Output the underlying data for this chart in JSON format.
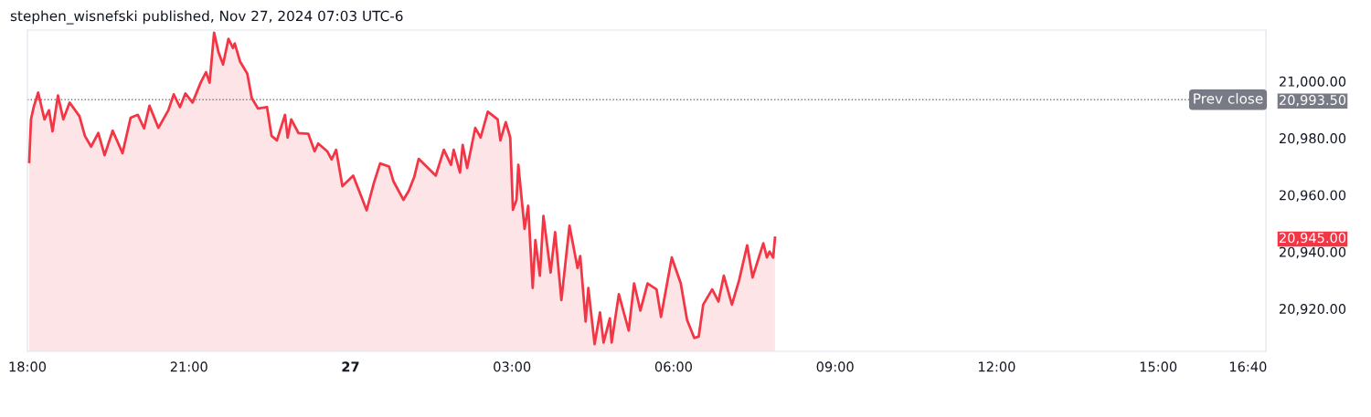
{
  "chart_data": {
    "type": "area",
    "title": "stephen_wisnefski published, Nov 27, 2024 07:03 UTC-6",
    "x": [
      "2024-11-26T18:02",
      "2024-11-26T18:04",
      "2024-11-26T18:07",
      "2024-11-26T18:12",
      "2024-11-26T18:19",
      "2024-11-26T18:24",
      "2024-11-26T18:28",
      "2024-11-26T18:34",
      "2024-11-26T18:40",
      "2024-11-26T18:47",
      "2024-11-26T18:58",
      "2024-11-26T19:04",
      "2024-11-26T19:11",
      "2024-11-26T19:19",
      "2024-11-26T19:26",
      "2024-11-26T19:35",
      "2024-11-26T19:46",
      "2024-11-26T19:55",
      "2024-11-26T20:03",
      "2024-11-26T20:10",
      "2024-11-26T20:16",
      "2024-11-26T20:26",
      "2024-11-26T20:37",
      "2024-11-26T20:43",
      "2024-11-26T20:50",
      "2024-11-26T20:56",
      "2024-11-26T21:04",
      "2024-11-26T21:13",
      "2024-11-26T21:19",
      "2024-11-26T21:23",
      "2024-11-26T21:28",
      "2024-11-26T21:33",
      "2024-11-26T21:38",
      "2024-11-26T21:44",
      "2024-11-26T21:49",
      "2024-11-26T21:51",
      "2024-11-26T21:57",
      "2024-11-26T22:05",
      "2024-11-26T22:10",
      "2024-11-26T22:17",
      "2024-11-26T22:27",
      "2024-11-26T22:32",
      "2024-11-26T22:38",
      "2024-11-26T22:47",
      "2024-11-26T22:50",
      "2024-11-26T22:54",
      "2024-11-26T23:02",
      "2024-11-26T23:13",
      "2024-11-26T23:20",
      "2024-11-26T23:24",
      "2024-11-26T23:34",
      "2024-11-26T23:39",
      "2024-11-26T23:44",
      "2024-11-26T23:51",
      "2024-11-27T00:03",
      "2024-11-27T00:18",
      "2024-11-27T00:26",
      "2024-11-27T00:33",
      "2024-11-27T00:43",
      "2024-11-27T00:48",
      "2024-11-27T00:59",
      "2024-11-27T01:05",
      "2024-11-27T01:11",
      "2024-11-27T01:16",
      "2024-11-27T01:35",
      "2024-11-27T01:44",
      "2024-11-27T01:52",
      "2024-11-27T01:55",
      "2024-11-27T02:02",
      "2024-11-27T02:05",
      "2024-11-27T02:10",
      "2024-11-27T02:19",
      "2024-11-27T02:25",
      "2024-11-27T02:33",
      "2024-11-27T02:44",
      "2024-11-27T02:47",
      "2024-11-27T02:53",
      "2024-11-27T02:58",
      "2024-11-27T03:01",
      "2024-11-27T03:05",
      "2024-11-27T03:07",
      "2024-11-27T03:14",
      "2024-11-27T03:18",
      "2024-11-27T03:23",
      "2024-11-27T03:26",
      "2024-11-27T03:31",
      "2024-11-27T03:35",
      "2024-11-27T03:43",
      "2024-11-27T03:48",
      "2024-11-27T03:55",
      "2024-11-27T04:04",
      "2024-11-27T04:13",
      "2024-11-27T04:16",
      "2024-11-27T04:22",
      "2024-11-27T04:25",
      "2024-11-27T04:32",
      "2024-11-27T04:38",
      "2024-11-27T04:42",
      "2024-11-27T04:49",
      "2024-11-27T04:51",
      "2024-11-27T04:59",
      "2024-11-27T05:10",
      "2024-11-27T05:16",
      "2024-11-27T05:23",
      "2024-11-27T05:31",
      "2024-11-27T05:41",
      "2024-11-27T05:46",
      "2024-11-27T05:58",
      "2024-11-27T06:08",
      "2024-11-27T06:15",
      "2024-11-27T06:23",
      "2024-11-27T06:28",
      "2024-11-27T06:33",
      "2024-11-27T06:43",
      "2024-11-27T06:50",
      "2024-11-27T06:56",
      "2024-11-27T07:05",
      "2024-11-27T07:13",
      "2024-11-27T07:22",
      "2024-11-27T07:28",
      "2024-11-27T07:40",
      "2024-11-27T07:44",
      "2024-11-27T07:47",
      "2024-11-27T07:51",
      "2024-11-27T07:53"
    ],
    "series": [
      {
        "color": "#f23645",
        "values": [
          20971.6,
          20986.6,
          20990.9,
          20996.0,
          20986.6,
          20989.8,
          20982.4,
          20995.0,
          20986.6,
          20992.5,
          20987.7,
          20980.8,
          20977.0,
          20981.8,
          20974.0,
          20982.6,
          20974.7,
          20987.2,
          20988.2,
          20983.4,
          20991.4,
          20983.6,
          20989.8,
          20995.4,
          20990.9,
          20995.7,
          20992.5,
          20999.5,
          21003.2,
          20999.5,
          21017.1,
          21010.1,
          21005.9,
          21014.9,
          21011.7,
          21013.3,
          21006.9,
          21002.7,
          20994.1,
          20990.4,
          20990.9,
          20980.8,
          20979.2,
          20988.2,
          20980.2,
          20986.6,
          20981.8,
          20981.5,
          20975.4,
          20978.1,
          20975.4,
          20972.5,
          20975.9,
          20963.1,
          20966.8,
          20954.6,
          20964.2,
          20971.1,
          20970.0,
          20964.7,
          20958.3,
          20961.5,
          20966.3,
          20972.7,
          20966.8,
          20975.9,
          20970.6,
          20975.9,
          20967.9,
          20977.6,
          20969.5,
          20983.6,
          20980.2,
          20989.3,
          20986.6,
          20979.2,
          20985.6,
          20980.2,
          20954.8,
          20958.3,
          20970.6,
          20948.1,
          20956.2,
          20927.3,
          20944.1,
          20931.6,
          20952.6,
          20932.7,
          20946.9,
          20923.0,
          20949.2,
          20934.3,
          20938.5,
          20915.5,
          20927.3,
          20907.5,
          20918.7,
          20908.1,
          20916.6,
          20908.1,
          20925.1,
          20912.3,
          20928.9,
          20919.3,
          20928.9,
          20926.8,
          20917.1,
          20938.0,
          20928.9,
          20916.1,
          20909.7,
          20910.2,
          20921.4,
          20926.8,
          20922.5,
          20931.6,
          20921.4,
          20930.0,
          20942.3,
          20931.0,
          20943.0,
          20938.0,
          20940.1,
          20938.0,
          20945.0
        ]
      }
    ],
    "xlim": [
      "2024-11-26T18:00",
      "2024-11-27T17:00"
    ],
    "xticks": [
      {
        "value": "2024-11-26T18:00",
        "label": "18:00"
      },
      {
        "value": "2024-11-26T21:00",
        "label": "21:00"
      },
      {
        "value": "2024-11-27T00:00",
        "label": "27"
      },
      {
        "value": "2024-11-27T03:00",
        "label": "03:00"
      },
      {
        "value": "2024-11-27T06:00",
        "label": "06:00"
      },
      {
        "value": "2024-11-27T09:00",
        "label": "09:00"
      },
      {
        "value": "2024-11-27T12:00",
        "label": "12:00"
      },
      {
        "value": "2024-11-27T15:00",
        "label": "15:00"
      },
      {
        "value": "2024-11-27T16:40",
        "label": "16:40"
      }
    ],
    "ylim": [
      20905,
      21018
    ],
    "yticks": [
      {
        "value": 20920,
        "label": "20,920.00"
      },
      {
        "value": 20940,
        "label": "20,940.00"
      },
      {
        "value": 20945,
        "label": "20,945.00"
      },
      {
        "value": 20960,
        "label": "20,960.00"
      },
      {
        "value": 20980,
        "label": "20,980.00"
      },
      {
        "value": 20993.5,
        "label": "20,993.50"
      },
      {
        "value": 21000,
        "label": "21,000.00"
      }
    ],
    "ref_lines": [
      {
        "axis": "y",
        "value": 20993.5,
        "label": "Prev close",
        "color": "#787b86",
        "line_style": "dotted"
      }
    ]
  }
}
